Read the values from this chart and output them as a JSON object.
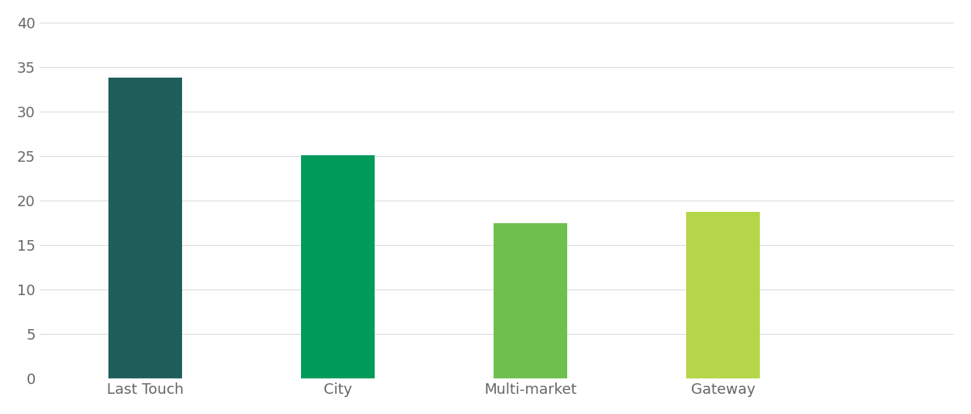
{
  "categories": [
    "Last Touch",
    "City",
    "Multi-market",
    "Gateway"
  ],
  "values": [
    33.8,
    25.1,
    17.5,
    18.7
  ],
  "bar_colors": [
    "#1f5f5b",
    "#009b5b",
    "#6dc04e",
    "#b5d648"
  ],
  "ylim": [
    0,
    40
  ],
  "yticks": [
    0,
    5,
    10,
    15,
    20,
    25,
    30,
    35,
    40
  ],
  "background_color": "#ffffff",
  "grid_color": "#dddddd",
  "tick_label_color": "#666666",
  "bar_width": 0.38,
  "tick_fontsize": 13,
  "xlim_left": -0.55,
  "xlim_right": 4.2
}
